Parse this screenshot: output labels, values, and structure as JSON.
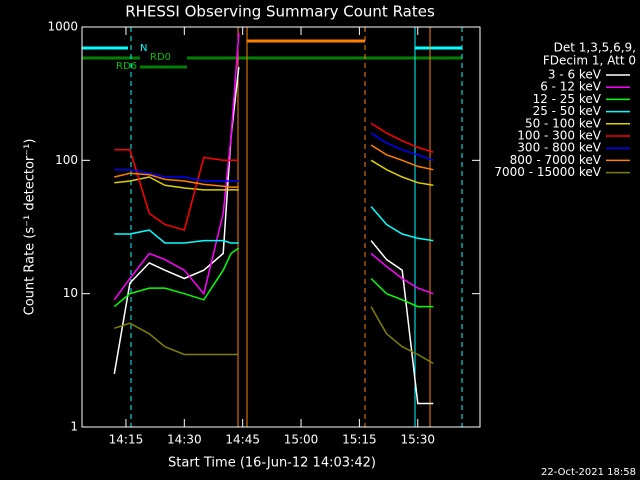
{
  "chart_data": {
    "type": "line",
    "title": "RHESSI Observing Summary Count Rates",
    "x_label": "Start Time (16-Jun-12 14:03:42)",
    "y_label": "Count Rate (s⁻¹ detector⁻¹)",
    "legend_title": [
      "Det 1,3,5,6,9,",
      "FDecim 1, Att 0"
    ],
    "footer": "22-Oct-2021 18:58",
    "flags": [
      "N",
      "RD0",
      "RD6"
    ],
    "log_y": true,
    "legend": "outside-right",
    "xlim": [
      "14:03:42",
      "15:46:00"
    ],
    "xticks": [
      "14:15",
      "14:30",
      "14:45",
      "15:00",
      "15:15",
      "15:30"
    ],
    "ylim": [
      1,
      1000
    ],
    "yticks": [
      1,
      10,
      100,
      1000
    ],
    "x": [
      "14:12",
      "14:16",
      "14:21",
      "14:25",
      "14:30",
      "14:35",
      "14:40",
      "14:42",
      "14:44",
      "15:00",
      "15:18",
      "15:22",
      "15:26",
      "15:30",
      "15:34"
    ],
    "series": [
      {
        "name": "3 - 6 keV",
        "color": "#ffffff",
        "values": [
          2.5,
          12,
          17,
          15,
          13,
          15,
          20,
          150,
          500,
          null,
          25,
          18,
          15,
          1.5,
          1.5
        ]
      },
      {
        "name": "6 - 12 keV",
        "color": "#ff00ff",
        "values": [
          9,
          13,
          20,
          18,
          15,
          10,
          40,
          150,
          900,
          null,
          20,
          16,
          13,
          11,
          10
        ]
      },
      {
        "name": "12 - 25 keV",
        "color": "#00ff00",
        "values": [
          8,
          10,
          11,
          11,
          10,
          9,
          15,
          20,
          22,
          null,
          13,
          10,
          9,
          8,
          8
        ]
      },
      {
        "name": "25 - 50 keV",
        "color": "#00ffff",
        "values": [
          28,
          28,
          30,
          24,
          24,
          25,
          25,
          24,
          24,
          null,
          45,
          33,
          28,
          26,
          25
        ]
      },
      {
        "name": "50 - 100 keV",
        "color": "#e0d000",
        "values": [
          68,
          70,
          75,
          65,
          62,
          60,
          60,
          60,
          60,
          null,
          100,
          85,
          75,
          68,
          65
        ]
      },
      {
        "name": "100 - 300 keV",
        "color": "#ff0000",
        "values": [
          120,
          120,
          40,
          33,
          30,
          105,
          100,
          100,
          100,
          null,
          190,
          160,
          140,
          125,
          115
        ]
      },
      {
        "name": "300 - 800 keV",
        "color": "#0000ff",
        "values": [
          85,
          85,
          80,
          75,
          75,
          70,
          70,
          70,
          70,
          null,
          160,
          135,
          120,
          110,
          100
        ]
      },
      {
        "name": "800 - 7000 keV",
        "color": "#ff8000",
        "values": [
          75,
          80,
          78,
          72,
          70,
          66,
          64,
          63,
          63,
          null,
          130,
          110,
          100,
          90,
          85
        ]
      },
      {
        "name": "7000 - 15000 keV",
        "color": "#808000",
        "values": [
          5.5,
          6,
          5,
          4,
          3.5,
          3.5,
          3.5,
          3.5,
          3.5,
          null,
          8,
          5,
          4,
          3.5,
          3
        ]
      }
    ]
  }
}
